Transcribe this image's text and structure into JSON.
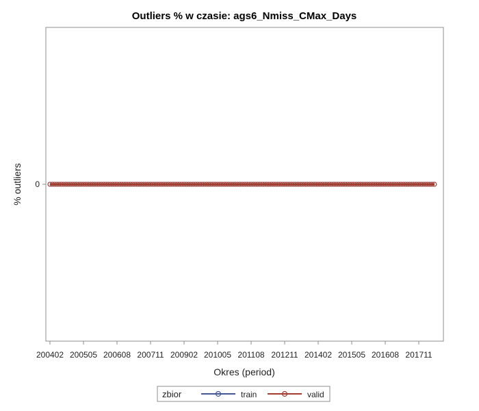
{
  "chart_data": {
    "type": "line",
    "title": "Outliers % w czasie: ags6_Nmiss_CMax_Days",
    "xlabel": "Okres (period)",
    "ylabel": "% outliers",
    "x_tick_labels": [
      "200402",
      "200505",
      "200608",
      "200711",
      "200902",
      "201005",
      "201108",
      "201211",
      "201402",
      "201505",
      "201608",
      "201711"
    ],
    "y_tick_labels": [
      "0"
    ],
    "x_range": [
      "200402",
      "201806"
    ],
    "legend": {
      "title": "zbior",
      "placement": "bottom-center"
    },
    "series": [
      {
        "name": "train",
        "color": "#445694",
        "marker": "circle",
        "value": 0
      },
      {
        "name": "valid",
        "color": "#a23a2e",
        "marker": "circle",
        "value": 0
      }
    ],
    "note": "All monthly values from 200402 to 201806 equal 0 for both series."
  }
}
